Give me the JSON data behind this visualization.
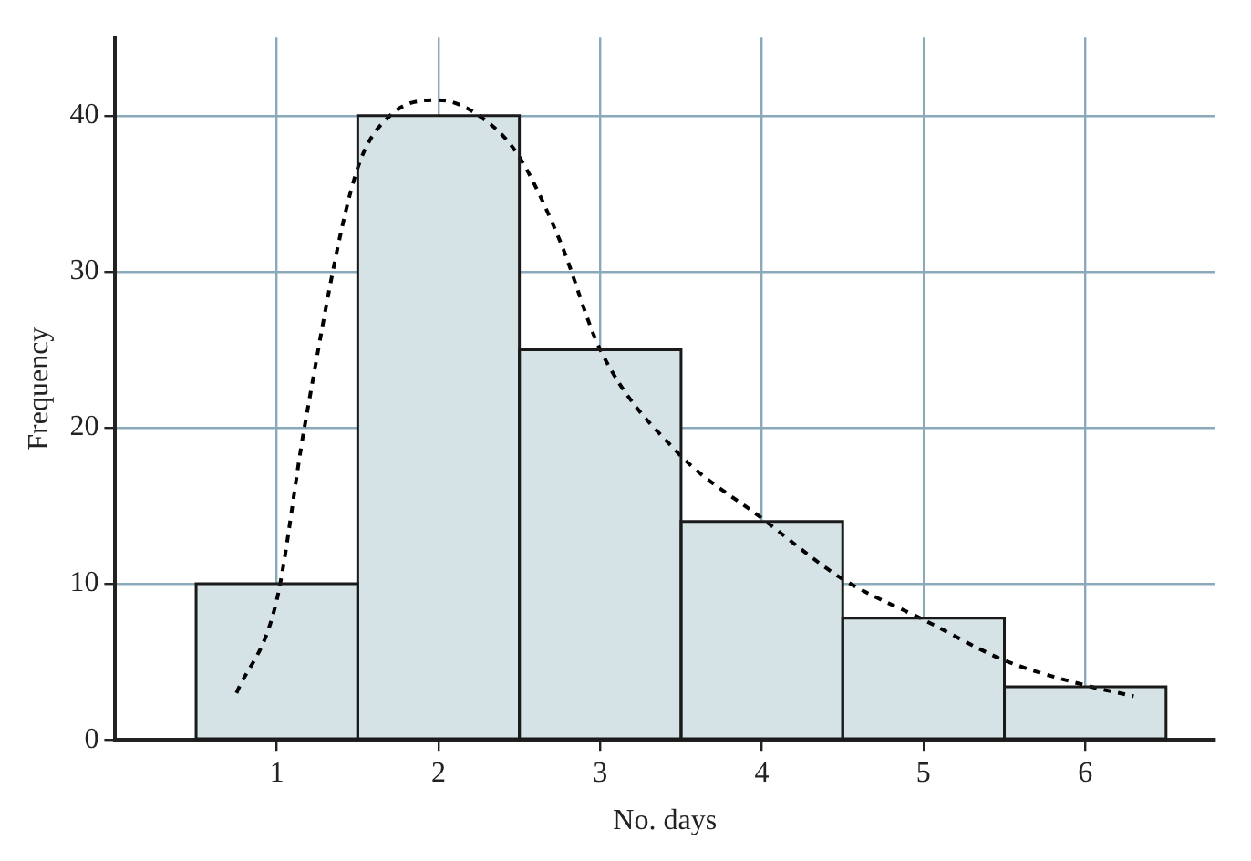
{
  "chart_data": {
    "type": "histogram",
    "xlabel": "No. days",
    "ylabel": "Frequency",
    "xlim": [
      0,
      6.8
    ],
    "xticks": [
      1,
      2,
      3,
      4,
      5,
      6
    ],
    "ylim": [
      0,
      45
    ],
    "yticks": [
      0,
      10,
      20,
      30,
      40
    ],
    "grid": true,
    "legend": false,
    "series": [
      {
        "color": "#d5e3e6",
        "bins": [
          0.5,
          1.5,
          2.5,
          3.5,
          4.5,
          5.5,
          6.5
        ],
        "values": [
          10,
          40,
          25,
          14,
          7.8,
          3.4
        ]
      },
      {
        "type": "line",
        "color": "#000000",
        "line_style": "dashed",
        "marker": "none",
        "x": [
          0.75,
          1,
          1.17,
          1.48,
          1.7,
          2,
          2.25,
          2.49,
          2.75,
          3,
          3.47,
          4,
          4.5,
          5,
          5.5,
          6,
          6.3
        ],
        "values": [
          3,
          9,
          20,
          36,
          40,
          41,
          40,
          37.5,
          32,
          25,
          18.5,
          14.2,
          10.3,
          7.7,
          5.1,
          3.5,
          2.8
        ]
      }
    ]
  }
}
